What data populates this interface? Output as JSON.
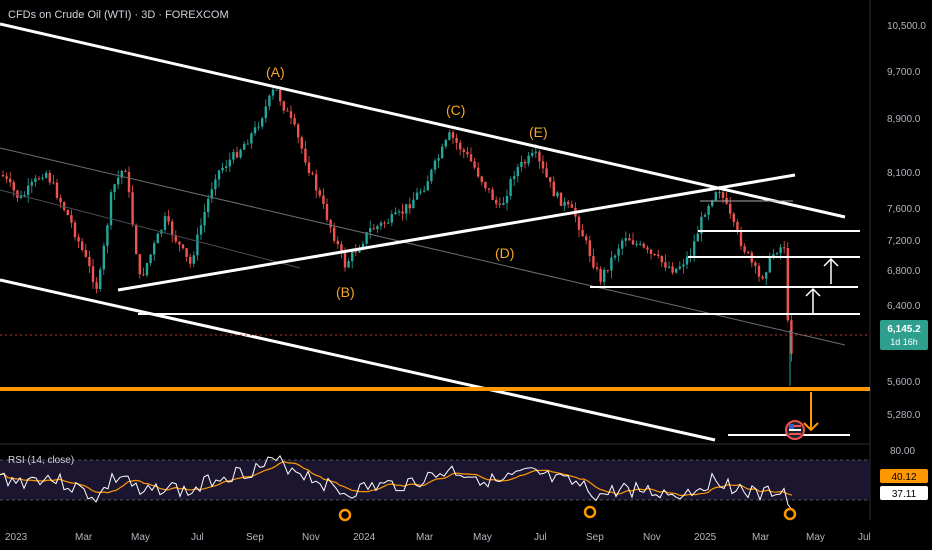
{
  "header": {
    "title": "CFDs on Crude Oil (WTI) · 3D · FOREXCOM"
  },
  "rsi": {
    "title": "RSI (14, close)",
    "ma_value": "40.12",
    "rsi_value": "37.11",
    "upper_tick": "80.00"
  },
  "price_badge": {
    "price": "6,145.2",
    "countdown": "1d 16h"
  },
  "colors": {
    "up": "#26a69a",
    "down": "#ef5350",
    "accent": "#ff9800",
    "line": "#ffffff",
    "rsi_ma": "#ff9800",
    "badge": "#2e9e8f"
  },
  "chart_data": {
    "type": "candlestick",
    "symbol": "CFDs on Crude Oil (WTI)",
    "timeframe": "3D",
    "price_ticks": [
      "10,500.0",
      "9,700.0",
      "8,900.0",
      "8,100.0",
      "7,600.0",
      "7,200.0",
      "6,800.0",
      "6,400.0",
      "5,600.0",
      "5,280.0"
    ],
    "time_ticks": [
      "2023",
      "Mar",
      "May",
      "Jul",
      "Sep",
      "Nov",
      "2024",
      "Mar",
      "May",
      "Jul",
      "Sep",
      "Nov",
      "2025",
      "Mar",
      "May",
      "Jul"
    ],
    "wave_labels": [
      "(A)",
      "(B)",
      "(C)",
      "(D)",
      "(E)"
    ],
    "last_price": 6145.2,
    "support_level": 5560,
    "rsi_upper": 80.0,
    "rsi_ma": 40.12,
    "rsi_last": 37.11
  }
}
